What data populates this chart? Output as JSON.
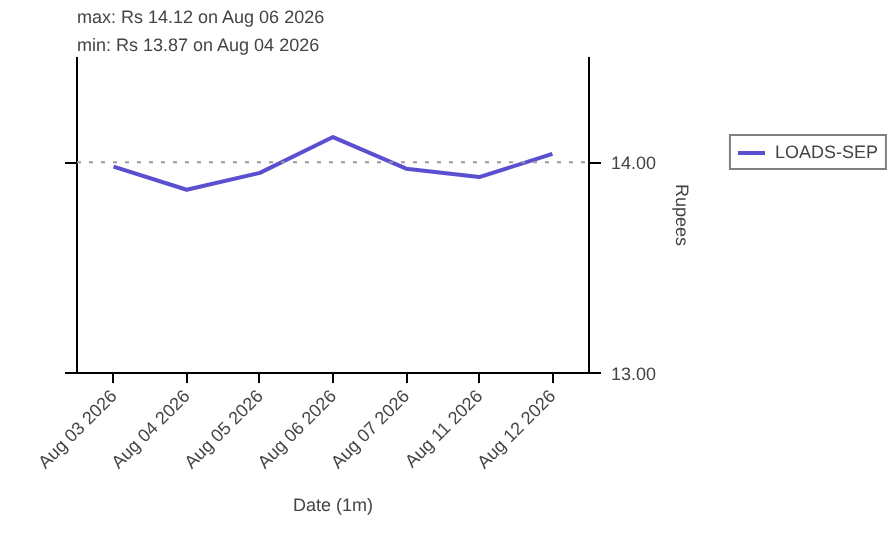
{
  "chart_data": {
    "type": "line",
    "annotations": [
      "max: Rs 14.12 on Aug 06 2026",
      "min: Rs 13.87 on Aug 04 2026"
    ],
    "xlabel": "Date (1m)",
    "y2label": "Rupees",
    "categories": [
      "Aug 03 2026",
      "Aug 04 2026",
      "Aug 05 2026",
      "Aug 06 2026",
      "Aug 07 2026",
      "Aug 11 2026",
      "Aug 12 2026"
    ],
    "series": [
      {
        "name": "LOADS-SEP",
        "color": "#5a4fcf",
        "axis": "y2",
        "values": [
          13.98,
          13.87,
          13.95,
          14.12,
          13.97,
          13.93,
          14.04
        ]
      }
    ],
    "y2lim": [
      13.0,
      14.5
    ],
    "y2ticks": [
      {
        "value": 13,
        "label": "13.00"
      },
      {
        "value": 14,
        "label": "14.00"
      }
    ],
    "ref_lines": [
      {
        "axis": "y2",
        "value": 14,
        "color": "#999999",
        "line_style": "dotted"
      }
    ],
    "grid": false,
    "legend": "right",
    "marker": "none",
    "line_style": "solid"
  }
}
